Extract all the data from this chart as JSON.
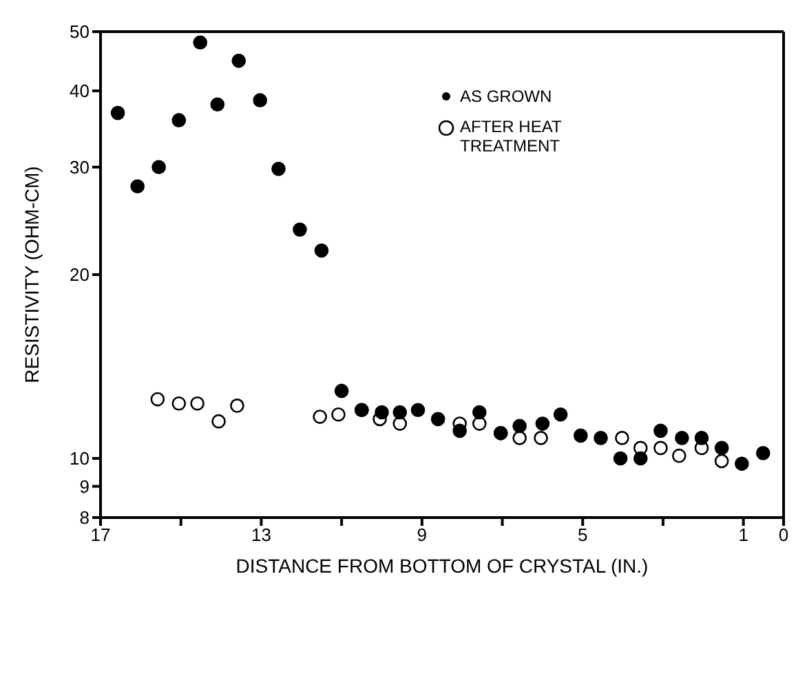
{
  "chart_data": {
    "type": "scatter",
    "xlabel": "DISTANCE FROM BOTTOM OF CRYSTAL (IN.)",
    "ylabel": "RESISTIVITY    (OHM-CM)",
    "log": "y",
    "xlim": [
      17,
      0
    ],
    "xticks": [
      17,
      {
        "value": 15,
        "label": null
      },
      13,
      {
        "value": 11,
        "label": null
      },
      9,
      {
        "value": 7,
        "label": null
      },
      5,
      {
        "value": 3,
        "label": null
      },
      1,
      0
    ],
    "ylim": [
      8,
      50
    ],
    "yticks": [
      8,
      9,
      10,
      20,
      30,
      40,
      50
    ],
    "grid": false,
    "legend": "top right",
    "marker": "circle",
    "series": [
      {
        "name": "AS GROWN",
        "color": "#000000",
        "x": [
          16.57,
          16.08,
          15.55,
          15.05,
          14.52,
          14.09,
          13.56,
          13.03,
          12.57,
          12.04,
          11.5,
          11.0,
          10.5,
          10.0,
          9.55,
          9.1,
          8.6,
          8.06,
          7.57,
          7.04,
          6.57,
          6.0,
          5.55,
          5.05,
          4.55,
          4.06,
          3.56,
          3.06,
          2.53,
          2.04,
          1.54,
          1.04,
          0.51
        ],
        "values": [
          36.8,
          27.9,
          30.0,
          35.8,
          48.0,
          38.0,
          44.8,
          38.6,
          29.8,
          23.7,
          21.9,
          12.9,
          12.0,
          11.9,
          11.9,
          12.0,
          11.6,
          11.1,
          11.9,
          11.0,
          11.3,
          11.4,
          11.8,
          10.9,
          10.8,
          10.0,
          10.0,
          11.1,
          10.8,
          10.8,
          10.4,
          9.8,
          10.2
        ]
      },
      {
        "name": "AFTER HEAT TREATMENT",
        "color": "#000000",
        "x": [
          15.58,
          15.05,
          14.59,
          14.06,
          13.6,
          11.54,
          11.08,
          10.5,
          10.05,
          9.55,
          8.06,
          7.57,
          7.04,
          6.57,
          6.04,
          4.02,
          3.56,
          3.06,
          2.6,
          2.04,
          1.54
        ],
        "values": [
          12.5,
          12.3,
          12.3,
          11.5,
          12.2,
          11.7,
          11.8,
          12.0,
          11.6,
          11.4,
          11.4,
          11.4,
          11.0,
          10.8,
          10.8,
          10.8,
          10.4,
          10.4,
          10.1,
          10.4,
          9.9
        ]
      }
    ]
  }
}
